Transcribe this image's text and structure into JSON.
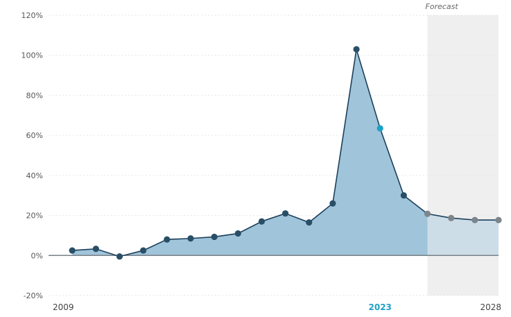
{
  "chart_data": {
    "type": "area",
    "forecast_label": "Forecast",
    "forecast_start_year": 2025,
    "x_tick_labels": [
      "2009",
      "2023",
      "2028"
    ],
    "highlight_year": 2023,
    "y_tick_labels": [
      "-20%",
      "0%",
      "20%",
      "40%",
      "60%",
      "80%",
      "100%",
      "120%"
    ],
    "ylim": [
      -20,
      120
    ],
    "xlim": [
      2009,
      2028
    ],
    "grid": true,
    "x": [
      2010,
      2011,
      2012,
      2013,
      2014,
      2015,
      2016,
      2017,
      2018,
      2019,
      2020,
      2021,
      2022,
      2023,
      2024,
      2025,
      2026,
      2027,
      2028
    ],
    "values": [
      2.5,
      3.3,
      -0.5,
      2.5,
      8,
      8.5,
      9.3,
      11,
      17,
      21,
      16.5,
      26,
      103,
      63.5,
      30,
      20.8,
      18.7,
      17.7,
      17.7
    ],
    "units": "%",
    "colors": {
      "area_actual": "#a0c4da",
      "area_forecast": "#ccdde8",
      "line": "#1b3f5a",
      "point_actual": "#294f68",
      "point_forecast": "#7c858c",
      "point_highlight": "#1fa0c6",
      "forecast_band": "#efefef",
      "baseline": "#7a8087"
    }
  }
}
